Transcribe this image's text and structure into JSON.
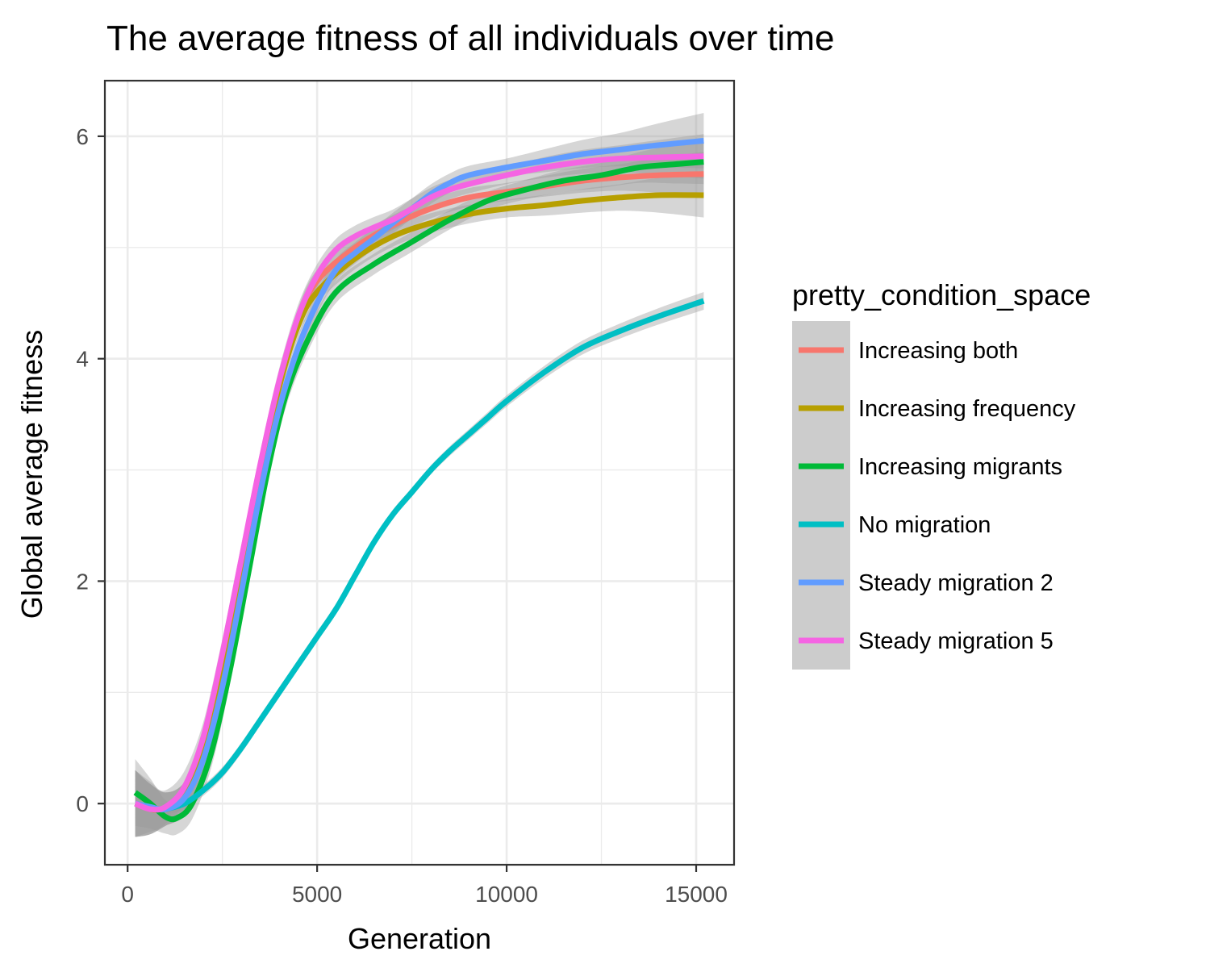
{
  "chart_data": {
    "type": "line",
    "title": "The average fitness of all individuals over time",
    "xlabel": "Generation",
    "ylabel": "Global average fitness",
    "xlim": [
      -600,
      16000
    ],
    "ylim": [
      -0.55,
      6.5
    ],
    "x_ticks": [
      0,
      5000,
      10000,
      15000
    ],
    "x_tick_labels": [
      "0",
      "5000",
      "10000",
      "15000"
    ],
    "y_ticks": [
      0,
      2,
      4,
      6
    ],
    "y_tick_labels": [
      "0",
      "2",
      "4",
      "6"
    ],
    "grid": true,
    "confidence_band": true,
    "legend": {
      "title": "pretty_condition_space",
      "position": "right"
    },
    "series": [
      {
        "name": "Increasing both",
        "color": "#F8766D",
        "points": [
          [
            200,
            0.0
          ],
          [
            600,
            -0.05
          ],
          [
            1000,
            -0.05
          ],
          [
            1500,
            0.05
          ],
          [
            2000,
            0.45
          ],
          [
            2500,
            1.2
          ],
          [
            3000,
            2.1
          ],
          [
            3500,
            3.0
          ],
          [
            4000,
            3.75
          ],
          [
            4500,
            4.35
          ],
          [
            5000,
            4.7
          ],
          [
            6000,
            5.0
          ],
          [
            7000,
            5.2
          ],
          [
            8000,
            5.35
          ],
          [
            9000,
            5.45
          ],
          [
            10000,
            5.5
          ],
          [
            11000,
            5.55
          ],
          [
            12000,
            5.6
          ],
          [
            13000,
            5.63
          ],
          [
            14000,
            5.65
          ],
          [
            15200,
            5.66
          ]
        ],
        "band": [
          [
            200,
            0.3
          ],
          [
            1000,
            0.15
          ],
          [
            5000,
            0.1
          ],
          [
            10000,
            0.08
          ],
          [
            13000,
            0.12
          ],
          [
            15200,
            0.2
          ]
        ]
      },
      {
        "name": "Increasing frequency",
        "color": "#B79F00",
        "points": [
          [
            200,
            0.0
          ],
          [
            600,
            -0.05
          ],
          [
            1000,
            -0.05
          ],
          [
            1500,
            0.05
          ],
          [
            2000,
            0.45
          ],
          [
            2500,
            1.2
          ],
          [
            3000,
            2.1
          ],
          [
            3500,
            3.0
          ],
          [
            4000,
            3.75
          ],
          [
            4500,
            4.3
          ],
          [
            5000,
            4.6
          ],
          [
            6000,
            4.9
          ],
          [
            7000,
            5.1
          ],
          [
            8000,
            5.22
          ],
          [
            9000,
            5.3
          ],
          [
            10000,
            5.35
          ],
          [
            11000,
            5.38
          ],
          [
            12000,
            5.42
          ],
          [
            13000,
            5.45
          ],
          [
            14000,
            5.47
          ],
          [
            15200,
            5.47
          ]
        ],
        "band": [
          [
            200,
            0.3
          ],
          [
            1000,
            0.15
          ],
          [
            5000,
            0.1
          ],
          [
            10000,
            0.08
          ],
          [
            13000,
            0.12
          ],
          [
            15200,
            0.2
          ]
        ]
      },
      {
        "name": "Increasing migrants",
        "color": "#00BA38",
        "points": [
          [
            200,
            0.1
          ],
          [
            600,
            0.0
          ],
          [
            1000,
            -0.12
          ],
          [
            1300,
            -0.13
          ],
          [
            1700,
            0.0
          ],
          [
            2200,
            0.45
          ],
          [
            2700,
            1.2
          ],
          [
            3200,
            2.1
          ],
          [
            3700,
            3.0
          ],
          [
            4200,
            3.7
          ],
          [
            4800,
            4.2
          ],
          [
            5500,
            4.6
          ],
          [
            6500,
            4.85
          ],
          [
            7500,
            5.05
          ],
          [
            8500,
            5.25
          ],
          [
            9500,
            5.42
          ],
          [
            10500,
            5.52
          ],
          [
            11500,
            5.6
          ],
          [
            12500,
            5.65
          ],
          [
            13500,
            5.72
          ],
          [
            14500,
            5.75
          ],
          [
            15200,
            5.77
          ]
        ],
        "band": [
          [
            200,
            0.3
          ],
          [
            1000,
            0.15
          ],
          [
            5000,
            0.1
          ],
          [
            10000,
            0.08
          ],
          [
            13000,
            0.12
          ],
          [
            15200,
            0.2
          ]
        ]
      },
      {
        "name": "No migration",
        "color": "#00BFC4",
        "points": [
          [
            1000,
            -0.05
          ],
          [
            1500,
            0.0
          ],
          [
            2000,
            0.12
          ],
          [
            2500,
            0.28
          ],
          [
            3000,
            0.5
          ],
          [
            3500,
            0.75
          ],
          [
            4000,
            1.0
          ],
          [
            4500,
            1.25
          ],
          [
            5000,
            1.5
          ],
          [
            5500,
            1.75
          ],
          [
            6000,
            2.05
          ],
          [
            6500,
            2.35
          ],
          [
            7000,
            2.6
          ],
          [
            7500,
            2.8
          ],
          [
            8000,
            3.0
          ],
          [
            8500,
            3.17
          ],
          [
            9000,
            3.32
          ],
          [
            9500,
            3.47
          ],
          [
            10000,
            3.62
          ],
          [
            11000,
            3.88
          ],
          [
            12000,
            4.1
          ],
          [
            13000,
            4.25
          ],
          [
            14000,
            4.38
          ],
          [
            15200,
            4.52
          ]
        ],
        "band": [
          [
            1000,
            0.05
          ],
          [
            8000,
            0.04
          ],
          [
            15200,
            0.08
          ]
        ]
      },
      {
        "name": "Steady migration 2",
        "color": "#619CFF",
        "points": [
          [
            200,
            0.0
          ],
          [
            600,
            -0.03
          ],
          [
            1000,
            -0.05
          ],
          [
            1500,
            0.05
          ],
          [
            2000,
            0.4
          ],
          [
            2500,
            1.05
          ],
          [
            3000,
            1.9
          ],
          [
            3500,
            2.8
          ],
          [
            4000,
            3.55
          ],
          [
            4500,
            4.1
          ],
          [
            5000,
            4.5
          ],
          [
            5500,
            4.8
          ],
          [
            6000,
            4.95
          ],
          [
            6500,
            5.08
          ],
          [
            7000,
            5.22
          ],
          [
            7500,
            5.35
          ],
          [
            8000,
            5.48
          ],
          [
            8500,
            5.58
          ],
          [
            9000,
            5.65
          ],
          [
            10000,
            5.72
          ],
          [
            11000,
            5.78
          ],
          [
            12000,
            5.84
          ],
          [
            13000,
            5.88
          ],
          [
            14000,
            5.92
          ],
          [
            15200,
            5.96
          ]
        ],
        "band": [
          [
            200,
            0.3
          ],
          [
            1000,
            0.15
          ],
          [
            5000,
            0.1
          ],
          [
            10000,
            0.08
          ],
          [
            13000,
            0.15
          ],
          [
            15200,
            0.25
          ]
        ]
      },
      {
        "name": "Steady migration 5",
        "color": "#F564E3",
        "points": [
          [
            200,
            0.0
          ],
          [
            600,
            -0.05
          ],
          [
            1000,
            -0.03
          ],
          [
            1500,
            0.15
          ],
          [
            2000,
            0.6
          ],
          [
            2500,
            1.35
          ],
          [
            3000,
            2.2
          ],
          [
            3500,
            3.05
          ],
          [
            4000,
            3.8
          ],
          [
            4500,
            4.38
          ],
          [
            5000,
            4.75
          ],
          [
            5500,
            4.98
          ],
          [
            6000,
            5.1
          ],
          [
            6500,
            5.18
          ],
          [
            7000,
            5.25
          ],
          [
            7500,
            5.35
          ],
          [
            8000,
            5.45
          ],
          [
            8500,
            5.52
          ],
          [
            9000,
            5.57
          ],
          [
            10000,
            5.65
          ],
          [
            11000,
            5.72
          ],
          [
            12000,
            5.77
          ],
          [
            13000,
            5.8
          ],
          [
            14000,
            5.81
          ],
          [
            15200,
            5.82
          ]
        ],
        "band": [
          [
            200,
            0.3
          ],
          [
            1000,
            0.15
          ],
          [
            5000,
            0.1
          ],
          [
            10000,
            0.08
          ],
          [
            13000,
            0.12
          ],
          [
            15200,
            0.2
          ]
        ]
      }
    ]
  }
}
